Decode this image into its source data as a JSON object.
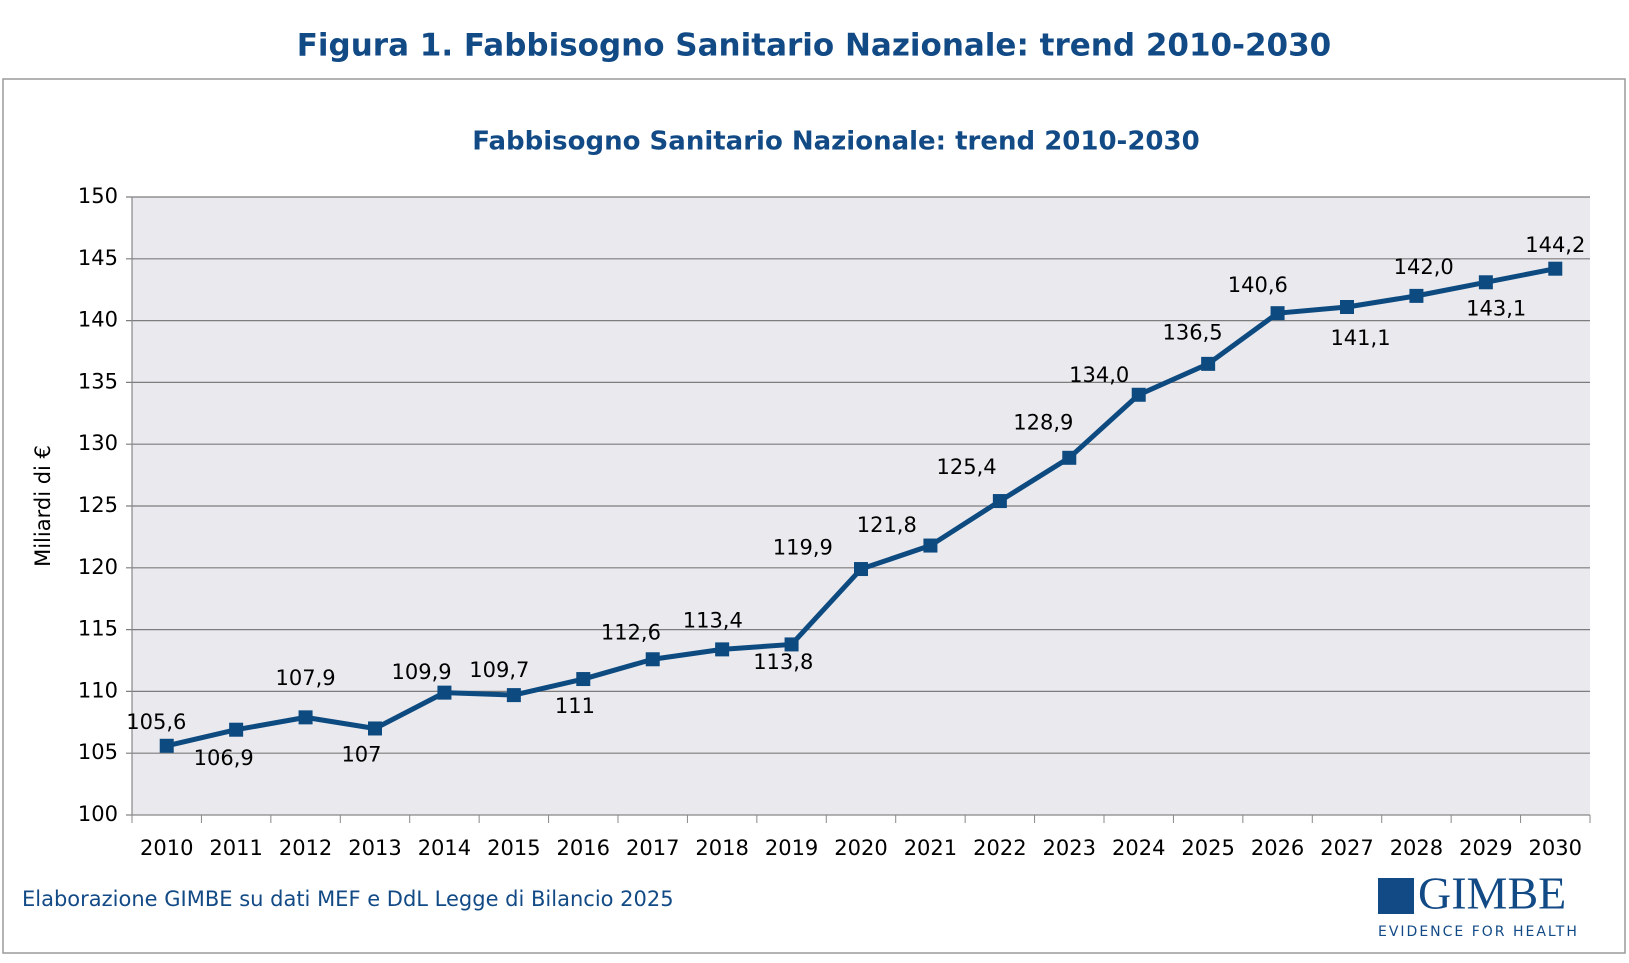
{
  "page": {
    "figure_title": "Figura 1. Fabbisogno Sanitario Nazionale: trend 2010-2030",
    "footer": "Elaborazione GIMBE su dati MEF e DdL Legge di Bilancio 2025",
    "logo": {
      "name": "GIMBE",
      "tagline": "EVIDENCE FOR HEALTH"
    }
  },
  "chart_data": {
    "type": "line",
    "title": "Fabbisogno Sanitario Nazionale: trend 2010-2030",
    "y_label": "Miliardi di €",
    "categories": [
      "2010",
      "2011",
      "2012",
      "2013",
      "2014",
      "2015",
      "2016",
      "2017",
      "2018",
      "2019",
      "2020",
      "2021",
      "2022",
      "2023",
      "2024",
      "2025",
      "2026",
      "2027",
      "2028",
      "2029",
      "2030"
    ],
    "series": [
      {
        "name": "Fabbisogno Sanitario Nazionale",
        "color": "#0d4a80",
        "values": [
          105.6,
          106.9,
          107.9,
          107,
          109.9,
          109.7,
          111,
          112.6,
          113.4,
          113.8,
          119.9,
          121.8,
          125.4,
          128.9,
          134.0,
          136.5,
          140.6,
          141.1,
          142.0,
          143.1,
          144.2
        ],
        "value_labels": [
          "105,6",
          "106,9",
          "107,9",
          "107",
          "109,9",
          "109,7",
          "111",
          "112,6",
          "113,4",
          "113,8",
          "119,9",
          "121,8",
          "125,4",
          "128,9",
          "134,0",
          "136,5",
          "140,6",
          "141,1",
          "142,0",
          "143,1",
          "144,2"
        ]
      }
    ],
    "ylim": [
      100,
      150
    ],
    "yticks": [
      100,
      105,
      110,
      115,
      120,
      125,
      130,
      135,
      140,
      145,
      150
    ],
    "grid": true
  }
}
